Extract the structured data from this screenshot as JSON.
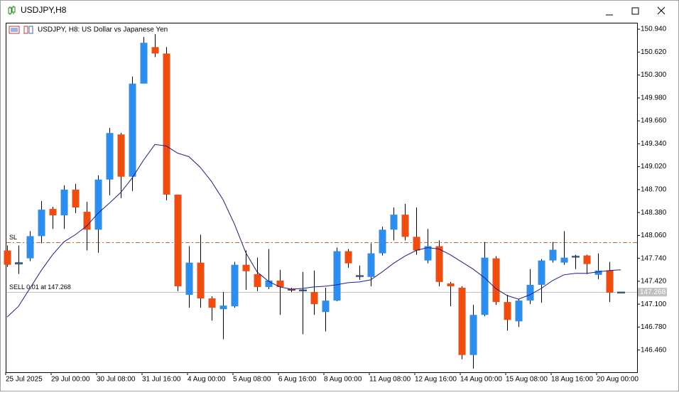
{
  "window": {
    "title": "USDJPY,H8"
  },
  "chart_data": {
    "type": "candlestick",
    "title": "USDJPY, H8:  US Dollar vs Japanese Yen",
    "categories": [
      "25 Jul 2025",
      null,
      null,
      null,
      "29 Jul 00:00",
      null,
      null,
      null,
      "30 Jul 08:00",
      null,
      null,
      null,
      "31 Jul 16:00",
      null,
      null,
      null,
      "4 Aug 00:00",
      null,
      null,
      null,
      "5 Aug 08:00",
      null,
      null,
      null,
      "6 Aug 16:00",
      null,
      null,
      null,
      "8 Aug 00:00",
      null,
      null,
      null,
      "11 Aug 08:00",
      null,
      null,
      null,
      "12 Aug 16:00",
      null,
      null,
      null,
      "14 Aug 00:00",
      null,
      null,
      null,
      "15 Aug 08:00",
      null,
      null,
      null,
      "18 Aug 16:00",
      null,
      null,
      null,
      "20 Aug 00:00",
      null,
      null
    ],
    "open": [
      147.85,
      147.66,
      147.74,
      148.05,
      148.43,
      148.34,
      148.7,
      148.39,
      148.14,
      148.84,
      149.47,
      148.88,
      150.18,
      150.69,
      150.6,
      148.63,
      147.23,
      147.68,
      147.18,
      147.03,
      147.07,
      147.65,
      147.52,
      147.34,
      147.43,
      147.31,
      147.3,
      147.27,
      146.99,
      147.15,
      147.84,
      147.49,
      147.48,
      147.81,
      148.14,
      148.35,
      148.04,
      147.71,
      147.91,
      147.39,
      147.33,
      146.39,
      146.95,
      147.74,
      147.13,
      146.86,
      147.15,
      147.37,
      147.71,
      147.68,
      147.76,
      147.78,
      147.51,
      147.57,
      147.27
    ],
    "high": [
      147.92,
      147.92,
      148.12,
      148.54,
      148.46,
      148.76,
      148.78,
      148.53,
      148.9,
      149.56,
      149.49,
      150.28,
      150.83,
      150.87,
      150.69,
      148.63,
      147.91,
      148.07,
      147.21,
      147.27,
      147.69,
      147.85,
      147.75,
      147.87,
      147.58,
      147.33,
      147.55,
      147.57,
      147.33,
      147.89,
      147.87,
      147.64,
      147.95,
      148.18,
      148.45,
      148.5,
      148.45,
      148.15,
      147.99,
      147.41,
      147.35,
      147.09,
      147.97,
      147.77,
      147.23,
      147.17,
      147.59,
      147.73,
      147.97,
      148.12,
      147.79,
      147.79,
      147.81,
      147.69,
      147.27
    ],
    "low": [
      147.62,
      147.52,
      147.7,
      147.95,
      148.15,
      148.15,
      148.37,
      147.85,
      147.82,
      148.62,
      148.58,
      148.68,
      150.18,
      150.55,
      148.55,
      147.28,
      147.05,
      147.05,
      146.87,
      146.61,
      147.05,
      147.3,
      147.28,
      147.31,
      146.95,
      147.27,
      146.68,
      146.95,
      146.72,
      147.14,
      147.61,
      147.44,
      147.35,
      147.78,
      147.99,
      147.99,
      147.79,
      147.67,
      147.35,
      147.07,
      146.33,
      146.2,
      146.93,
      147.09,
      146.73,
      146.78,
      147.1,
      147.12,
      147.68,
      147.65,
      147.59,
      147.52,
      147.45,
      147.13,
      147.27
    ],
    "close": [
      147.65,
      147.68,
      148.05,
      148.42,
      148.34,
      148.7,
      148.45,
      148.14,
      148.84,
      149.49,
      148.88,
      150.18,
      150.75,
      150.6,
      148.63,
      147.35,
      147.68,
      147.18,
      147.05,
      147.08,
      147.65,
      147.56,
      147.34,
      147.43,
      147.34,
      147.3,
      147.3,
      147.1,
      147.15,
      147.84,
      147.67,
      147.5,
      147.81,
      148.14,
      148.35,
      148.04,
      147.85,
      147.91,
      147.41,
      147.35,
      146.39,
      146.95,
      147.75,
      147.13,
      146.88,
      147.15,
      147.37,
      147.71,
      147.86,
      147.75,
      147.77,
      147.66,
      147.57,
      147.26,
      147.27
    ],
    "up_color": "#2e8ef0",
    "down_color": "#f24b10",
    "wick_color": "#000000",
    "ma": {
      "color": "#1c1c96",
      "values": [
        146.92,
        147.07,
        147.32,
        147.57,
        147.79,
        147.97,
        148.07,
        148.19,
        148.37,
        148.51,
        148.66,
        148.86,
        149.11,
        149.33,
        149.31,
        149.21,
        149.16,
        149.01,
        148.81,
        148.56,
        148.22,
        147.82,
        147.55,
        147.42,
        147.34,
        147.31,
        147.32,
        147.34,
        147.35,
        147.37,
        147.4,
        147.41,
        147.44,
        147.55,
        147.67,
        147.77,
        147.85,
        147.89,
        147.87,
        147.79,
        147.69,
        147.59,
        147.47,
        147.32,
        147.22,
        147.17,
        147.23,
        147.32,
        147.43,
        147.51,
        147.53,
        147.53,
        147.55,
        147.57,
        147.58
      ]
    },
    "lines": [
      {
        "label": "SL",
        "value": 147.96,
        "color": "#d8642a",
        "style": "dashed"
      },
      {
        "label": "SELL 0.01 at 147.268",
        "value": 147.268,
        "color": "#c0c0c0",
        "style": "solid"
      }
    ],
    "ylim": [
      146.149,
      151.03
    ],
    "yticks": [
      {
        "value": 150.94,
        "label": "150.940"
      },
      {
        "value": 150.62,
        "label": "150.620"
      },
      {
        "value": 150.3,
        "label": "150.300"
      },
      {
        "value": 149.98,
        "label": "149.980"
      },
      {
        "value": 149.66,
        "label": "149.660"
      },
      {
        "value": 149.34,
        "label": "149.340"
      },
      {
        "value": 149.02,
        "label": "149.020"
      },
      {
        "value": 148.7,
        "label": "148.700"
      },
      {
        "value": 148.38,
        "label": "148.380"
      },
      {
        "value": 148.06,
        "label": "148.060"
      },
      {
        "value": 147.74,
        "label": "147.740"
      },
      {
        "value": 147.42,
        "label": "147.420"
      },
      {
        "value": 147.1,
        "label": "147.100"
      },
      {
        "value": 146.78,
        "label": "146.780"
      },
      {
        "value": 146.46,
        "label": "146.460"
      }
    ]
  }
}
